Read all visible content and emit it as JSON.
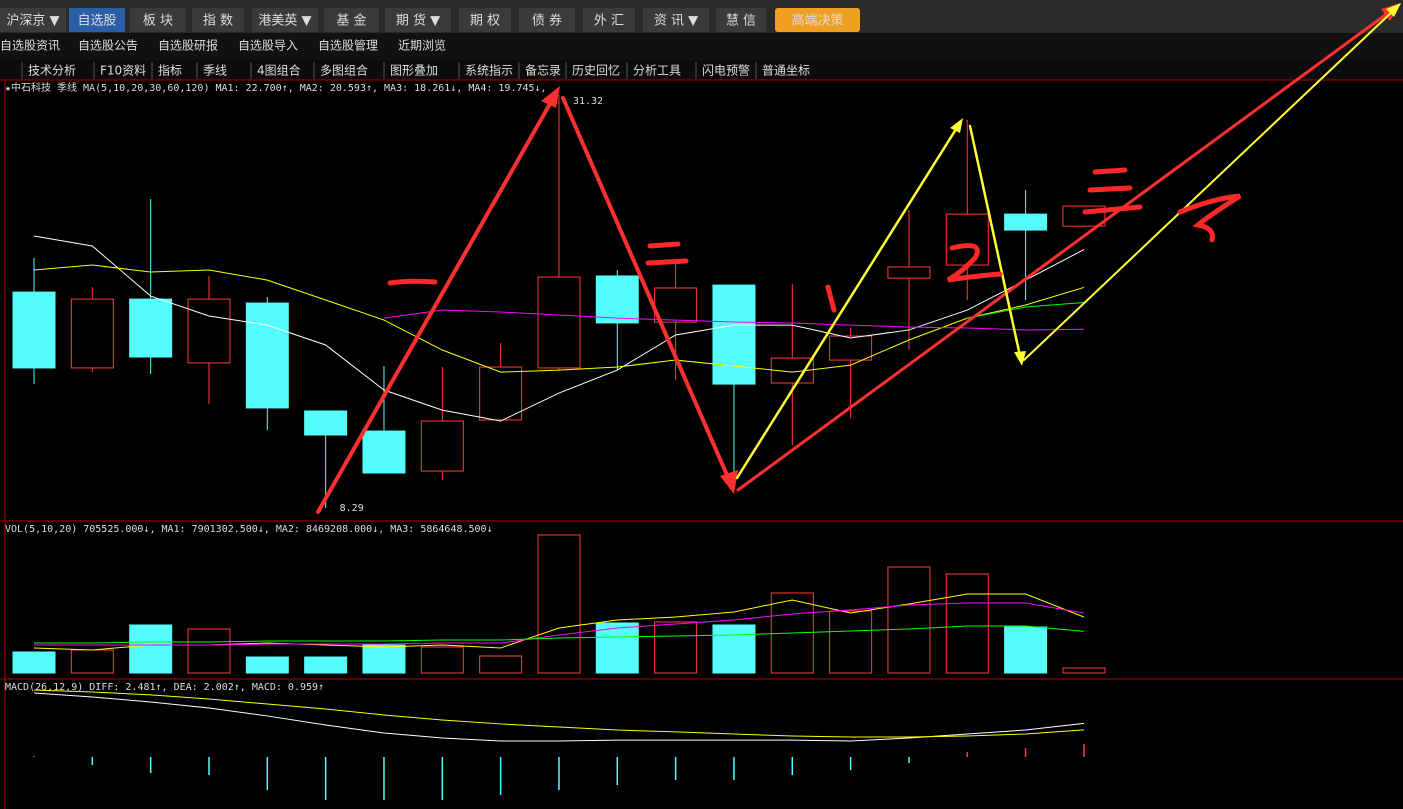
{
  "menu": [
    "沪深京 ▼",
    "自选股",
    "板 块",
    "指 数",
    "港美英 ▼",
    "基 金",
    "期 货 ▼",
    "期 权",
    "债 券",
    "外 汇",
    "资 讯 ▼",
    "慧 信",
    "高端决策"
  ],
  "submenu": [
    "自选股资讯",
    "自选股公告",
    "自选股研报",
    "自选股导入",
    "自选股管理",
    "近期浏览"
  ],
  "toolbar": [
    "技术分析",
    "F10资料",
    "指标",
    "季线",
    "4图组合",
    "多图组合",
    "图形叠加",
    "系统指示",
    "备忘录",
    "历史回忆",
    "分析工具",
    "闪电预警",
    "普通坐标"
  ],
  "chart_data": [
    {
      "type": "candlestick",
      "title": "★中石科技",
      "period": "季线",
      "indicator": "MA(5,10,20,30,60,120)",
      "up_color": "#ff3c3c",
      "down_color": "#54fcfc",
      "ohlc": [
        [
          20.33,
          22.23,
          15.2,
          16.1
        ],
        [
          16.1,
          20.61,
          15.87,
          19.94
        ],
        [
          19.94,
          25.52,
          15.76,
          16.71
        ],
        [
          16.38,
          21.23,
          14.09,
          19.94
        ],
        [
          19.72,
          20.06,
          12.64,
          13.87
        ],
        [
          13.7,
          13.7,
          8.29,
          12.36
        ],
        [
          12.58,
          16.21,
          10.24,
          10.24
        ],
        [
          10.35,
          16.15,
          9.85,
          13.14
        ],
        [
          13.2,
          17.49,
          13.2,
          16.15
        ],
        [
          16.1,
          31.32,
          15.98,
          21.17
        ],
        [
          21.23,
          21.56,
          15.98,
          18.61
        ],
        [
          18.66,
          22.01,
          15.43,
          20.56
        ],
        [
          20.72,
          20.72,
          9.29,
          15.2
        ],
        [
          15.26,
          20.78,
          11.8,
          16.65
        ],
        [
          16.54,
          18.33,
          13.31,
          17.88
        ],
        [
          21.11,
          24.91,
          17.1,
          21.73
        ],
        [
          21.84,
          29.93,
          19.89,
          24.68
        ],
        [
          24.68,
          26.02,
          19.89,
          23.79
        ],
        [
          24.01,
          25.13,
          24.01,
          25.13
        ]
      ],
      "ylim": [
        7.62,
        32.16
      ],
      "high_label": "31.32",
      "low_label": "8.29",
      "series": [
        {
          "label": "MA1: 22.700↑,",
          "color": "#ffffff",
          "values": [
            23.46,
            22.9,
            20.11,
            19.0,
            18.49,
            17.38,
            14.87,
            13.75,
            13.14,
            14.7,
            15.98,
            17.94,
            18.49,
            18.49,
            17.77,
            18.22,
            19.33,
            21.0,
            22.7
          ]
        },
        {
          "label": "MA2: 20.593↑,",
          "color": "#ffff00",
          "values": [
            21.56,
            21.84,
            21.45,
            21.56,
            21.0,
            19.89,
            18.77,
            17.1,
            15.87,
            15.98,
            16.15,
            16.54,
            16.21,
            15.87,
            16.26,
            17.66,
            18.88,
            19.61,
            20.59
          ]
        },
        {
          "label": "MA3: 18.261↓,",
          "color": "#ff00ff",
          "values": [
            null,
            null,
            null,
            null,
            null,
            null,
            18.88,
            19.33,
            19.22,
            19.05,
            18.88,
            18.77,
            18.66,
            18.61,
            18.49,
            18.38,
            18.33,
            18.22,
            18.26
          ]
        },
        {
          "label": "MA4: 19.745↓,",
          "color": "#00ff00",
          "values": [
            null,
            null,
            null,
            null,
            null,
            null,
            null,
            null,
            null,
            null,
            null,
            null,
            null,
            null,
            null,
            null,
            18.88,
            19.5,
            19.75
          ]
        }
      ]
    },
    {
      "type": "bar",
      "title": "VOL(5,10,20)",
      "label": "705525.000↓,",
      "values": [
        2963000,
        3245000,
        6773000,
        6209000,
        2258000,
        2258000,
        3951000,
        3669000,
        2399000,
        19472000,
        7055000,
        7196000,
        6773000,
        11288000,
        8749000,
        14957000,
        13969000,
        6491000,
        705525
      ],
      "ylim": [
        0,
        21300000
      ],
      "series": [
        {
          "label": "MA1: 7901302.500↓,",
          "color": "#ffff00",
          "values": [
            3528000,
            3245000,
            3951000,
            3951000,
            4233000,
            3951000,
            3669000,
            3951000,
            3528000,
            6350000,
            7479000,
            7902000,
            8607000,
            10301000,
            8466000,
            9736000,
            11147000,
            11147000,
            7901302.5
          ]
        },
        {
          "label": "MA2: 8469208.000↓,",
          "color": "#ff00ff",
          "values": [
            3951000,
            3951000,
            3951000,
            3951000,
            4092000,
            4092000,
            4092000,
            4233000,
            4233000,
            5362000,
            6350000,
            6914000,
            7479000,
            8325000,
            8889000,
            9595000,
            9877000,
            9877000,
            8469208
          ]
        },
        {
          "label": "MA3: 5864648.500↓",
          "color": "#00ff00",
          "values": [
            4233000,
            4233000,
            4374000,
            4374000,
            4515000,
            4515000,
            4515000,
            4656000,
            4656000,
            4938000,
            5080000,
            5221000,
            5362000,
            5645000,
            5927000,
            6209000,
            6632000,
            6632000,
            5864648.5
          ]
        }
      ]
    },
    {
      "type": "macd",
      "title": "MACD(26,12,9)",
      "label": "MACD: 0.959↑",
      "values": [
        0.07,
        -0.59,
        -1.18,
        -1.33,
        -2.44,
        -3.17,
        -3.17,
        -3.17,
        -2.8,
        -2.44,
        -2.07,
        -1.7,
        -1.7,
        -1.33,
        -0.96,
        -0.44,
        0.37,
        0.66,
        0.959
      ],
      "ylim": [
        -3.54,
        5.46
      ],
      "series": [
        {
          "label": "DIFF: 2.481↑,",
          "color": "#ffffff",
          "values": [
            4.72,
            4.43,
            4.06,
            3.62,
            3.03,
            2.36,
            1.77,
            1.4,
            1.18,
            1.18,
            1.25,
            1.25,
            1.25,
            1.25,
            1.18,
            1.4,
            1.7,
            1.99,
            2.481
          ]
        },
        {
          "label": "DEA: 2.002↑,",
          "color": "#ffff00",
          "values": [
            4.94,
            4.8,
            4.58,
            4.28,
            3.91,
            3.54,
            3.1,
            2.73,
            2.44,
            2.21,
            1.99,
            1.85,
            1.7,
            1.55,
            1.48,
            1.48,
            1.55,
            1.7,
            2.002
          ]
        }
      ]
    }
  ]
}
